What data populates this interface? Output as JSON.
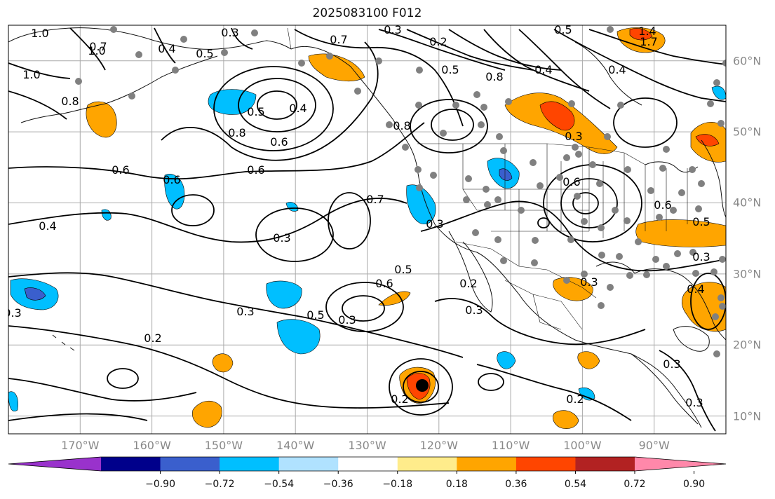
{
  "title": "2025083100 F012",
  "map": {
    "lon_range": [
      -180,
      -80
    ],
    "lat_range": [
      7.5,
      65
    ],
    "grid": true,
    "features": [
      "coastlines",
      "country borders",
      "US state borders",
      "station dots"
    ]
  },
  "axes": {
    "lon_labels": [
      "170°W",
      "160°W",
      "150°W",
      "140°W",
      "130°W",
      "120°W",
      "110°W",
      "100°W",
      "90°W"
    ],
    "lat_labels": [
      "60°N",
      "50°N",
      "40°N",
      "30°N",
      "20°N",
      "10°N"
    ]
  },
  "contour_labels": [
    "1.0",
    "0.4",
    "0.5",
    "0.3",
    "0.7",
    "0.3",
    "0.2",
    "0.5",
    "0.5",
    "1.4",
    "1.7",
    "1.0",
    "0.7",
    "1.0",
    "0.8",
    "0.4",
    "0.5",
    "0.8",
    "0.6",
    "0.8",
    "0.6",
    "0.6",
    "0.4",
    "0.6",
    "0.3",
    "0.4",
    "0.4",
    "0.3",
    "0.6",
    "0.7",
    "0.3",
    "0.6",
    "0.5",
    "0.6",
    "0.3",
    "0.5",
    "0.3",
    "0.2",
    "0.3",
    "0.3",
    "0.4",
    "0.3",
    "0.2",
    "0.3",
    "0.3",
    "0.2",
    "0.8",
    "0.5",
    "0.3",
    "0.2"
  ],
  "colorbar": {
    "colors": [
      "#9932cc",
      "#00008b",
      "#3a5fcd",
      "#00bfff",
      "#b0e2ff",
      "#ffffff",
      "#ffec8b",
      "#ffa500",
      "#ff4500",
      "#b22222",
      "#ff88aa"
    ],
    "tick_labels": [
      "−0.90",
      "−0.72",
      "−0.54",
      "−0.36",
      "−0.18",
      "0.18",
      "0.36",
      "0.54",
      "0.72",
      "0.90"
    ],
    "bounds": [
      -0.9,
      -0.72,
      -0.54,
      -0.36,
      -0.18,
      0.18,
      0.36,
      0.54,
      0.72,
      0.9
    ]
  }
}
